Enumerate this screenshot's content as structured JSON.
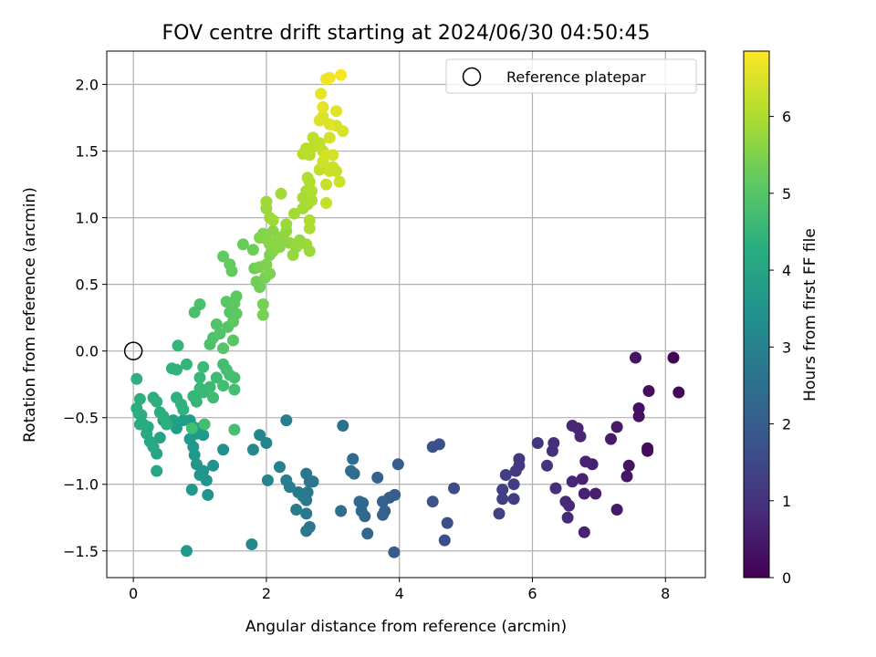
{
  "chart_data": {
    "type": "scatter",
    "title": "FOV centre drift starting at 2024/06/30 04:50:45",
    "xlabel": "Angular distance from reference (arcmin)",
    "ylabel": "Rotation from reference (arcmin)",
    "xlim": [
      -0.4,
      8.6
    ],
    "ylim": [
      -1.7,
      2.25
    ],
    "xticks": [
      0,
      2,
      4,
      6,
      8
    ],
    "xtick_labels": [
      "0",
      "2",
      "4",
      "6",
      "8"
    ],
    "yticks": [
      -1.5,
      -1.0,
      -0.5,
      0.0,
      0.5,
      1.0,
      1.5,
      2.0
    ],
    "ytick_labels": [
      "−1.5",
      "−1.0",
      "−0.5",
      "0.0",
      "0.5",
      "1.0",
      "1.5",
      "2.0"
    ],
    "grid": true,
    "legend": {
      "position": "top-right",
      "entries": [
        "Reference platepar"
      ]
    },
    "reference_point": {
      "x": 0,
      "y": 0
    },
    "colorbar": {
      "label": "Hours from first FF file",
      "colormap": "viridis",
      "range": [
        0,
        6.85
      ],
      "ticks": [
        0,
        1,
        2,
        3,
        4,
        5,
        6
      ],
      "tick_labels": [
        "0",
        "1",
        "2",
        "3",
        "4",
        "5",
        "6"
      ]
    },
    "points": [
      {
        "x": 8.12,
        "y": -0.05,
        "t": 0.05
      },
      {
        "x": 8.2,
        "y": -0.31,
        "t": 0.1
      },
      {
        "x": 7.75,
        "y": -0.3,
        "t": 0.25
      },
      {
        "x": 7.55,
        "y": -0.05,
        "t": 0.35
      },
      {
        "x": 7.6,
        "y": -0.43,
        "t": 0.3
      },
      {
        "x": 7.6,
        "y": -0.49,
        "t": 0.3
      },
      {
        "x": 7.73,
        "y": -0.73,
        "t": 0.2
      },
      {
        "x": 7.73,
        "y": -0.75,
        "t": 0.2
      },
      {
        "x": 7.45,
        "y": -0.86,
        "t": 0.35
      },
      {
        "x": 7.42,
        "y": -0.94,
        "t": 0.4
      },
      {
        "x": 7.27,
        "y": -0.57,
        "t": 0.45
      },
      {
        "x": 7.18,
        "y": -0.66,
        "t": 0.5
      },
      {
        "x": 7.27,
        "y": -1.19,
        "t": 0.45
      },
      {
        "x": 6.95,
        "y": -1.07,
        "t": 0.6
      },
      {
        "x": 6.9,
        "y": -0.85,
        "t": 0.6
      },
      {
        "x": 6.8,
        "y": -0.83,
        "t": 0.65
      },
      {
        "x": 6.72,
        "y": -0.64,
        "t": 0.7
      },
      {
        "x": 6.68,
        "y": -0.58,
        "t": 0.7
      },
      {
        "x": 6.6,
        "y": -0.56,
        "t": 0.75
      },
      {
        "x": 6.75,
        "y": -0.96,
        "t": 0.65
      },
      {
        "x": 6.78,
        "y": -1.07,
        "t": 0.65
      },
      {
        "x": 6.6,
        "y": -0.98,
        "t": 0.75
      },
      {
        "x": 6.55,
        "y": -1.16,
        "t": 0.8
      },
      {
        "x": 6.5,
        "y": -1.13,
        "t": 0.8
      },
      {
        "x": 6.53,
        "y": -1.25,
        "t": 0.8
      },
      {
        "x": 6.78,
        "y": -1.36,
        "t": 0.65
      },
      {
        "x": 6.35,
        "y": -1.03,
        "t": 0.9
      },
      {
        "x": 6.3,
        "y": -0.75,
        "t": 0.95
      },
      {
        "x": 6.32,
        "y": -0.69,
        "t": 0.95
      },
      {
        "x": 6.22,
        "y": -0.86,
        "t": 1.0
      },
      {
        "x": 6.08,
        "y": -0.69,
        "t": 1.05
      },
      {
        "x": 5.8,
        "y": -0.81,
        "t": 1.15
      },
      {
        "x": 5.8,
        "y": -0.86,
        "t": 1.15
      },
      {
        "x": 5.75,
        "y": -0.9,
        "t": 1.15
      },
      {
        "x": 5.72,
        "y": -1.0,
        "t": 1.2
      },
      {
        "x": 5.6,
        "y": -0.93,
        "t": 1.25
      },
      {
        "x": 5.55,
        "y": -1.04,
        "t": 1.3
      },
      {
        "x": 5.55,
        "y": -1.11,
        "t": 1.3
      },
      {
        "x": 5.72,
        "y": -1.11,
        "t": 1.2
      },
      {
        "x": 5.5,
        "y": -1.22,
        "t": 1.3
      },
      {
        "x": 4.82,
        "y": -1.03,
        "t": 1.6
      },
      {
        "x": 4.6,
        "y": -0.7,
        "t": 1.7
      },
      {
        "x": 4.5,
        "y": -0.72,
        "t": 1.7
      },
      {
        "x": 4.5,
        "y": -1.13,
        "t": 1.75
      },
      {
        "x": 4.72,
        "y": -1.29,
        "t": 1.65
      },
      {
        "x": 4.68,
        "y": -1.42,
        "t": 1.65
      },
      {
        "x": 3.98,
        "y": -0.85,
        "t": 2.0
      },
      {
        "x": 3.93,
        "y": -1.08,
        "t": 2.0
      },
      {
        "x": 3.85,
        "y": -1.1,
        "t": 2.05
      },
      {
        "x": 3.92,
        "y": -1.51,
        "t": 2.0
      },
      {
        "x": 3.75,
        "y": -1.13,
        "t": 2.1
      },
      {
        "x": 3.78,
        "y": -1.2,
        "t": 2.1
      },
      {
        "x": 3.67,
        "y": -0.95,
        "t": 2.15
      },
      {
        "x": 3.75,
        "y": -1.23,
        "t": 2.1
      },
      {
        "x": 3.52,
        "y": -1.37,
        "t": 2.25
      },
      {
        "x": 3.48,
        "y": -1.24,
        "t": 2.25
      },
      {
        "x": 3.43,
        "y": -1.2,
        "t": 2.3
      },
      {
        "x": 3.4,
        "y": -1.13,
        "t": 2.3
      },
      {
        "x": 3.45,
        "y": -1.14,
        "t": 2.3
      },
      {
        "x": 3.27,
        "y": -0.9,
        "t": 2.4
      },
      {
        "x": 3.3,
        "y": -0.81,
        "t": 2.4
      },
      {
        "x": 3.32,
        "y": -0.92,
        "t": 2.4
      },
      {
        "x": 3.15,
        "y": -0.56,
        "t": 2.5
      },
      {
        "x": 3.12,
        "y": -1.2,
        "t": 2.5
      },
      {
        "x": 2.65,
        "y": -0.98,
        "t": 2.7
      },
      {
        "x": 2.7,
        "y": -0.98,
        "t": 2.7
      },
      {
        "x": 2.6,
        "y": -0.92,
        "t": 2.75
      },
      {
        "x": 2.62,
        "y": -1.06,
        "t": 2.75
      },
      {
        "x": 2.6,
        "y": -1.12,
        "t": 2.75
      },
      {
        "x": 2.55,
        "y": -1.09,
        "t": 2.8
      },
      {
        "x": 2.48,
        "y": -1.06,
        "t": 2.8
      },
      {
        "x": 2.65,
        "y": -1.32,
        "t": 2.7
      },
      {
        "x": 2.6,
        "y": -1.35,
        "t": 2.75
      },
      {
        "x": 2.6,
        "y": -1.22,
        "t": 2.75
      },
      {
        "x": 2.45,
        "y": -1.19,
        "t": 2.85
      },
      {
        "x": 2.35,
        "y": -1.02,
        "t": 2.9
      },
      {
        "x": 2.3,
        "y": -0.97,
        "t": 2.9
      },
      {
        "x": 2.3,
        "y": -0.52,
        "t": 2.95
      },
      {
        "x": 2.2,
        "y": -0.87,
        "t": 3.0
      },
      {
        "x": 2.0,
        "y": -0.69,
        "t": 3.1
      },
      {
        "x": 1.9,
        "y": -0.63,
        "t": 3.15
      },
      {
        "x": 2.02,
        "y": -0.97,
        "t": 3.1
      },
      {
        "x": 1.8,
        "y": -0.74,
        "t": 3.2
      },
      {
        "x": 1.78,
        "y": -1.45,
        "t": 3.2
      },
      {
        "x": 1.35,
        "y": -0.74,
        "t": 3.4
      },
      {
        "x": 1.2,
        "y": -0.86,
        "t": 3.5
      },
      {
        "x": 1.05,
        "y": -0.9,
        "t": 3.55
      },
      {
        "x": 1.1,
        "y": -0.97,
        "t": 3.55
      },
      {
        "x": 1.12,
        "y": -1.08,
        "t": 3.55
      },
      {
        "x": 1.0,
        "y": -0.93,
        "t": 3.6
      },
      {
        "x": 0.95,
        "y": -0.85,
        "t": 3.6
      },
      {
        "x": 0.92,
        "y": -0.78,
        "t": 3.65
      },
      {
        "x": 0.9,
        "y": -0.72,
        "t": 3.65
      },
      {
        "x": 0.88,
        "y": -1.04,
        "t": 3.65
      },
      {
        "x": 0.8,
        "y": -1.5,
        "t": 3.7
      },
      {
        "x": 0.85,
        "y": -0.66,
        "t": 3.7
      },
      {
        "x": 0.95,
        "y": -0.62,
        "t": 3.7
      },
      {
        "x": 1.05,
        "y": -0.63,
        "t": 3.65
      },
      {
        "x": 1.0,
        "y": -0.58,
        "t": 3.7
      },
      {
        "x": 0.9,
        "y": -0.57,
        "t": 3.75
      },
      {
        "x": 0.85,
        "y": -0.52,
        "t": 3.75
      },
      {
        "x": 0.75,
        "y": -0.52,
        "t": 3.8
      },
      {
        "x": 0.65,
        "y": -0.58,
        "t": 3.85
      },
      {
        "x": 0.6,
        "y": -0.52,
        "t": 3.9
      },
      {
        "x": 0.45,
        "y": -0.52,
        "t": 3.95
      },
      {
        "x": 0.4,
        "y": -0.65,
        "t": 4.0
      },
      {
        "x": 0.35,
        "y": -0.77,
        "t": 4.05
      },
      {
        "x": 0.35,
        "y": -0.9,
        "t": 4.05
      },
      {
        "x": 0.3,
        "y": -0.72,
        "t": 4.1
      },
      {
        "x": 0.25,
        "y": -0.68,
        "t": 4.1
      },
      {
        "x": 0.2,
        "y": -0.62,
        "t": 4.15
      },
      {
        "x": 0.22,
        "y": -0.57,
        "t": 4.15
      },
      {
        "x": 0.15,
        "y": -0.55,
        "t": 4.2
      },
      {
        "x": 0.1,
        "y": -0.55,
        "t": 4.2
      },
      {
        "x": 0.12,
        "y": -0.48,
        "t": 4.25
      },
      {
        "x": 0.08,
        "y": -0.47,
        "t": 4.25
      },
      {
        "x": 0.05,
        "y": -0.43,
        "t": 4.3
      },
      {
        "x": 0.1,
        "y": -0.36,
        "t": 4.3
      },
      {
        "x": 0.05,
        "y": -0.21,
        "t": 4.35
      },
      {
        "x": 0.3,
        "y": -0.35,
        "t": 4.3
      },
      {
        "x": 0.35,
        "y": -0.38,
        "t": 4.3
      },
      {
        "x": 0.4,
        "y": -0.46,
        "t": 4.3
      },
      {
        "x": 0.45,
        "y": -0.49,
        "t": 4.3
      },
      {
        "x": 0.5,
        "y": -0.55,
        "t": 4.3
      },
      {
        "x": 0.65,
        "y": -0.35,
        "t": 4.35
      },
      {
        "x": 0.72,
        "y": -0.4,
        "t": 4.4
      },
      {
        "x": 0.75,
        "y": -0.44,
        "t": 4.4
      },
      {
        "x": 0.58,
        "y": -0.13,
        "t": 4.45
      },
      {
        "x": 0.65,
        "y": -0.14,
        "t": 4.45
      },
      {
        "x": 0.67,
        "y": 0.04,
        "t": 4.5
      },
      {
        "x": 0.8,
        "y": -0.1,
        "t": 4.5
      },
      {
        "x": 0.9,
        "y": -0.34,
        "t": 4.55
      },
      {
        "x": 0.95,
        "y": -0.38,
        "t": 4.55
      },
      {
        "x": 1.0,
        "y": -0.28,
        "t": 4.6
      },
      {
        "x": 1.05,
        "y": -0.31,
        "t": 4.6
      },
      {
        "x": 1.0,
        "y": -0.2,
        "t": 4.6
      },
      {
        "x": 1.05,
        "y": -0.12,
        "t": 4.65
      },
      {
        "x": 1.15,
        "y": -0.27,
        "t": 4.65
      },
      {
        "x": 1.2,
        "y": -0.35,
        "t": 4.7
      },
      {
        "x": 1.25,
        "y": -0.2,
        "t": 4.7
      },
      {
        "x": 1.35,
        "y": -0.1,
        "t": 4.75
      },
      {
        "x": 1.4,
        "y": -0.14,
        "t": 4.75
      },
      {
        "x": 1.35,
        "y": -0.26,
        "t": 4.75
      },
      {
        "x": 1.45,
        "y": -0.18,
        "t": 4.8
      },
      {
        "x": 1.52,
        "y": -0.2,
        "t": 4.8
      },
      {
        "x": 1.52,
        "y": -0.29,
        "t": 4.8
      },
      {
        "x": 1.52,
        "y": -0.59,
        "t": 4.8
      },
      {
        "x": 1.07,
        "y": -0.55,
        "t": 4.75
      },
      {
        "x": 0.88,
        "y": -0.58,
        "t": 4.75
      },
      {
        "x": 0.92,
        "y": 0.29,
        "t": 4.85
      },
      {
        "x": 1.0,
        "y": 0.35,
        "t": 4.85
      },
      {
        "x": 1.15,
        "y": 0.05,
        "t": 4.9
      },
      {
        "x": 1.2,
        "y": 0.1,
        "t": 4.9
      },
      {
        "x": 1.25,
        "y": 0.2,
        "t": 4.95
      },
      {
        "x": 1.3,
        "y": 0.13,
        "t": 4.95
      },
      {
        "x": 1.35,
        "y": 0.02,
        "t": 5.0
      },
      {
        "x": 1.42,
        "y": 0.18,
        "t": 5.0
      },
      {
        "x": 1.5,
        "y": 0.08,
        "t": 5.05
      },
      {
        "x": 1.4,
        "y": 0.37,
        "t": 5.05
      },
      {
        "x": 1.45,
        "y": 0.29,
        "t": 5.05
      },
      {
        "x": 1.52,
        "y": 0.36,
        "t": 5.1
      },
      {
        "x": 1.55,
        "y": 0.41,
        "t": 5.1
      },
      {
        "x": 1.55,
        "y": 0.28,
        "t": 5.1
      },
      {
        "x": 1.5,
        "y": 0.22,
        "t": 5.1
      },
      {
        "x": 1.35,
        "y": 0.71,
        "t": 5.15
      },
      {
        "x": 1.45,
        "y": 0.65,
        "t": 5.2
      },
      {
        "x": 1.48,
        "y": 0.6,
        "t": 5.2
      },
      {
        "x": 1.65,
        "y": 0.8,
        "t": 5.25
      },
      {
        "x": 1.8,
        "y": 0.76,
        "t": 5.3
      },
      {
        "x": 1.82,
        "y": 0.62,
        "t": 5.3
      },
      {
        "x": 1.85,
        "y": 0.52,
        "t": 5.35
      },
      {
        "x": 1.9,
        "y": 0.48,
        "t": 5.35
      },
      {
        "x": 1.95,
        "y": 0.35,
        "t": 5.4
      },
      {
        "x": 1.95,
        "y": 0.27,
        "t": 5.4
      },
      {
        "x": 1.9,
        "y": 0.63,
        "t": 5.45
      },
      {
        "x": 1.98,
        "y": 0.55,
        "t": 5.45
      },
      {
        "x": 2.0,
        "y": 0.65,
        "t": 5.5
      },
      {
        "x": 2.05,
        "y": 0.72,
        "t": 5.5
      },
      {
        "x": 2.05,
        "y": 0.58,
        "t": 5.5
      },
      {
        "x": 2.1,
        "y": 0.75,
        "t": 5.55
      },
      {
        "x": 1.9,
        "y": 0.85,
        "t": 5.55
      },
      {
        "x": 1.95,
        "y": 0.88,
        "t": 5.55
      },
      {
        "x": 2.0,
        "y": 0.84,
        "t": 5.6
      },
      {
        "x": 2.05,
        "y": 0.8,
        "t": 5.6
      },
      {
        "x": 2.1,
        "y": 0.9,
        "t": 5.6
      },
      {
        "x": 2.15,
        "y": 0.82,
        "t": 5.65
      },
      {
        "x": 2.2,
        "y": 0.78,
        "t": 5.65
      },
      {
        "x": 2.25,
        "y": 0.86,
        "t": 5.7
      },
      {
        "x": 2.3,
        "y": 0.9,
        "t": 5.7
      },
      {
        "x": 2.35,
        "y": 0.81,
        "t": 5.7
      },
      {
        "x": 2.4,
        "y": 0.72,
        "t": 5.75
      },
      {
        "x": 2.45,
        "y": 0.78,
        "t": 5.75
      },
      {
        "x": 2.5,
        "y": 0.83,
        "t": 5.75
      },
      {
        "x": 2.6,
        "y": 0.8,
        "t": 5.8
      },
      {
        "x": 2.65,
        "y": 0.75,
        "t": 5.8
      },
      {
        "x": 2.3,
        "y": 0.95,
        "t": 5.8
      },
      {
        "x": 2.0,
        "y": 1.07,
        "t": 5.8
      },
      {
        "x": 2.0,
        "y": 1.12,
        "t": 5.85
      },
      {
        "x": 2.05,
        "y": 1.0,
        "t": 5.85
      },
      {
        "x": 2.1,
        "y": 0.98,
        "t": 5.85
      },
      {
        "x": 2.22,
        "y": 1.18,
        "t": 5.9
      },
      {
        "x": 2.42,
        "y": 1.03,
        "t": 5.9
      },
      {
        "x": 2.55,
        "y": 1.07,
        "t": 5.9
      },
      {
        "x": 2.55,
        "y": 1.15,
        "t": 5.95
      },
      {
        "x": 2.6,
        "y": 1.2,
        "t": 5.95
      },
      {
        "x": 2.62,
        "y": 1.1,
        "t": 5.95
      },
      {
        "x": 2.65,
        "y": 0.98,
        "t": 6.0
      },
      {
        "x": 2.65,
        "y": 0.92,
        "t": 6.0
      },
      {
        "x": 2.68,
        "y": 1.13,
        "t": 6.0
      },
      {
        "x": 2.68,
        "y": 1.2,
        "t": 6.05
      },
      {
        "x": 2.65,
        "y": 1.27,
        "t": 6.05
      },
      {
        "x": 2.62,
        "y": 1.3,
        "t": 6.05
      },
      {
        "x": 2.55,
        "y": 1.48,
        "t": 6.1
      },
      {
        "x": 2.6,
        "y": 1.52,
        "t": 6.1
      },
      {
        "x": 2.65,
        "y": 1.47,
        "t": 6.1
      },
      {
        "x": 2.7,
        "y": 1.53,
        "t": 6.15
      },
      {
        "x": 2.7,
        "y": 1.6,
        "t": 6.15
      },
      {
        "x": 2.75,
        "y": 1.55,
        "t": 6.15
      },
      {
        "x": 2.8,
        "y": 1.56,
        "t": 6.2
      },
      {
        "x": 2.85,
        "y": 1.5,
        "t": 6.2
      },
      {
        "x": 2.8,
        "y": 1.36,
        "t": 6.2
      },
      {
        "x": 2.9,
        "y": 1.25,
        "t": 6.25
      },
      {
        "x": 2.9,
        "y": 1.11,
        "t": 6.25
      },
      {
        "x": 2.95,
        "y": 1.35,
        "t": 6.3
      },
      {
        "x": 3.0,
        "y": 1.38,
        "t": 6.3
      },
      {
        "x": 3.05,
        "y": 1.35,
        "t": 6.3
      },
      {
        "x": 3.1,
        "y": 1.27,
        "t": 6.35
      },
      {
        "x": 2.85,
        "y": 1.42,
        "t": 6.35
      },
      {
        "x": 2.9,
        "y": 1.47,
        "t": 6.4
      },
      {
        "x": 3.0,
        "y": 1.47,
        "t": 6.4
      },
      {
        "x": 2.95,
        "y": 1.6,
        "t": 6.4
      },
      {
        "x": 3.05,
        "y": 1.69,
        "t": 6.45
      },
      {
        "x": 3.15,
        "y": 1.65,
        "t": 6.45
      },
      {
        "x": 2.8,
        "y": 1.73,
        "t": 6.5
      },
      {
        "x": 2.85,
        "y": 1.76,
        "t": 6.5
      },
      {
        "x": 2.95,
        "y": 1.7,
        "t": 6.5
      },
      {
        "x": 3.05,
        "y": 1.8,
        "t": 6.55
      },
      {
        "x": 2.82,
        "y": 1.93,
        "t": 6.6
      },
      {
        "x": 2.85,
        "y": 1.83,
        "t": 6.6
      },
      {
        "x": 2.95,
        "y": 2.05,
        "t": 6.7
      },
      {
        "x": 2.9,
        "y": 2.04,
        "t": 6.7
      },
      {
        "x": 3.12,
        "y": 2.07,
        "t": 6.8
      }
    ]
  }
}
